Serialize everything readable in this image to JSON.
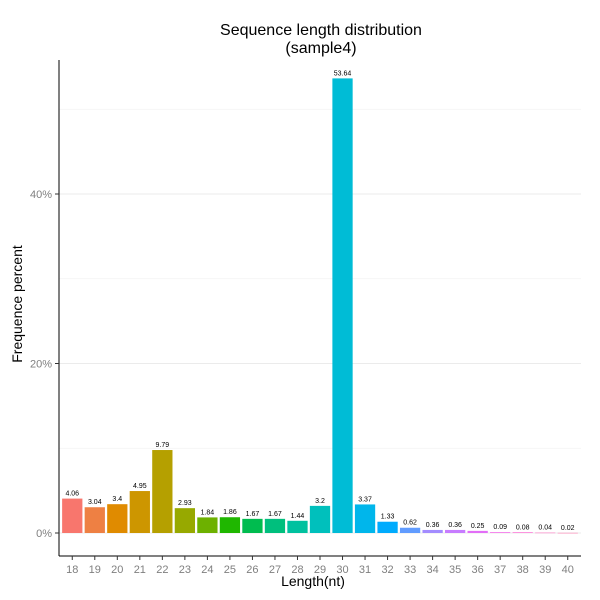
{
  "chart_data": {
    "type": "bar",
    "title": "Sequence length distribution",
    "subtitle": "(sample4)",
    "xlabel": "Length(nt)",
    "ylabel": "Frequence percent",
    "ylim": [
      0,
      56
    ],
    "yticks": [
      0,
      20,
      40
    ],
    "ytick_labels": [
      "0%",
      "20%",
      "40%"
    ],
    "minor_gridlines": [
      10,
      30,
      50
    ],
    "grid": true,
    "legend": "none",
    "categories": [
      "18",
      "19",
      "20",
      "21",
      "22",
      "23",
      "24",
      "25",
      "26",
      "27",
      "28",
      "29",
      "30",
      "31",
      "32",
      "33",
      "34",
      "35",
      "36",
      "37",
      "38",
      "39",
      "40"
    ],
    "values": [
      4.06,
      3.04,
      3.4,
      4.95,
      9.79,
      2.93,
      1.84,
      1.86,
      1.67,
      1.67,
      1.44,
      3.2,
      53.64,
      3.37,
      1.33,
      0.62,
      0.36,
      0.36,
      0.25,
      0.09,
      0.08,
      0.04,
      0.02
    ],
    "value_labels": [
      "4.06",
      "3.04",
      "3.4",
      "4.95",
      "9.79",
      "2.93",
      "1.84",
      "1.86",
      "1.67",
      "1.67",
      "1.44",
      "3.2",
      "53.64",
      "3.37",
      "1.33",
      "0.62",
      "0.36",
      "0.36",
      "0.25",
      "0.09",
      "0.08",
      "0.04",
      "0.02"
    ],
    "colors": [
      "#F8766D",
      "#EE8043",
      "#E08B00",
      "#CD9600",
      "#B5A000",
      "#97A900",
      "#6DB100",
      "#1FB700",
      "#00BC4F",
      "#00BF7D",
      "#00C19F",
      "#00C0BC",
      "#00BCD6",
      "#00B6EB",
      "#00ABFD",
      "#619CFF",
      "#A38CFF",
      "#C77CFF",
      "#E26EF7",
      "#F265E6",
      "#FB61D0",
      "#FF62BA",
      "#FF67A4"
    ]
  }
}
